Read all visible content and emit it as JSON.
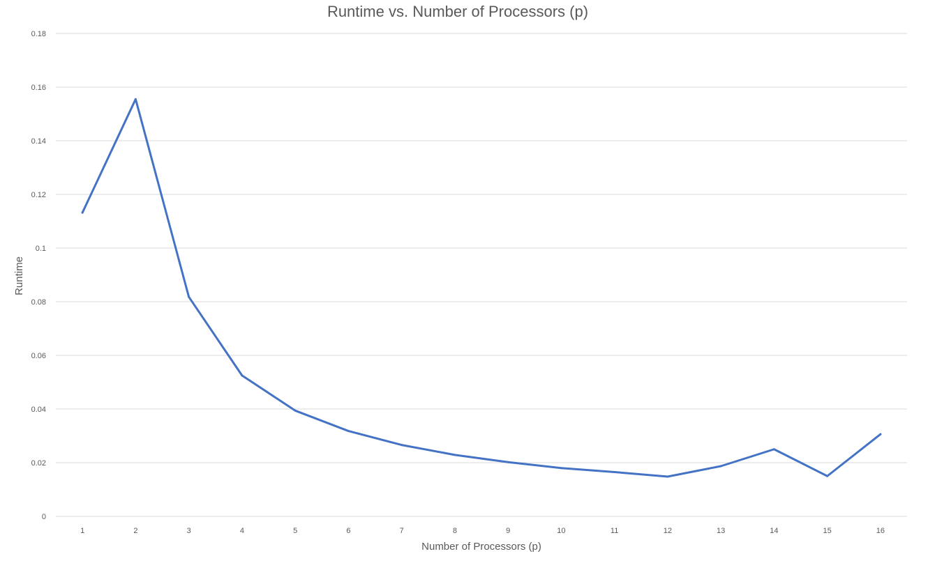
{
  "chart_data": {
    "type": "line",
    "title": "Runtime vs. Number of Processors (p)",
    "xlabel": "Number of Processors (p)",
    "ylabel": "Runtime",
    "categories": [
      "1",
      "2",
      "3",
      "4",
      "5",
      "6",
      "7",
      "8",
      "9",
      "10",
      "11",
      "12",
      "13",
      "14",
      "15",
      "16"
    ],
    "y_ticks": [
      "0",
      "0.02",
      "0.04",
      "0.06",
      "0.08",
      "0.1",
      "0.12",
      "0.14",
      "0.16",
      "0.18"
    ],
    "ylim": [
      0,
      0.18
    ],
    "grid": "horizontal",
    "legend": "none",
    "series": [
      {
        "color": "#4472c4",
        "values": [
          0.1132,
          0.1555,
          0.0818,
          0.0525,
          0.0394,
          0.0318,
          0.0266,
          0.0229,
          0.0202,
          0.018,
          0.0165,
          0.0148,
          0.0187,
          0.025,
          0.015,
          0.0306
        ]
      }
    ]
  }
}
